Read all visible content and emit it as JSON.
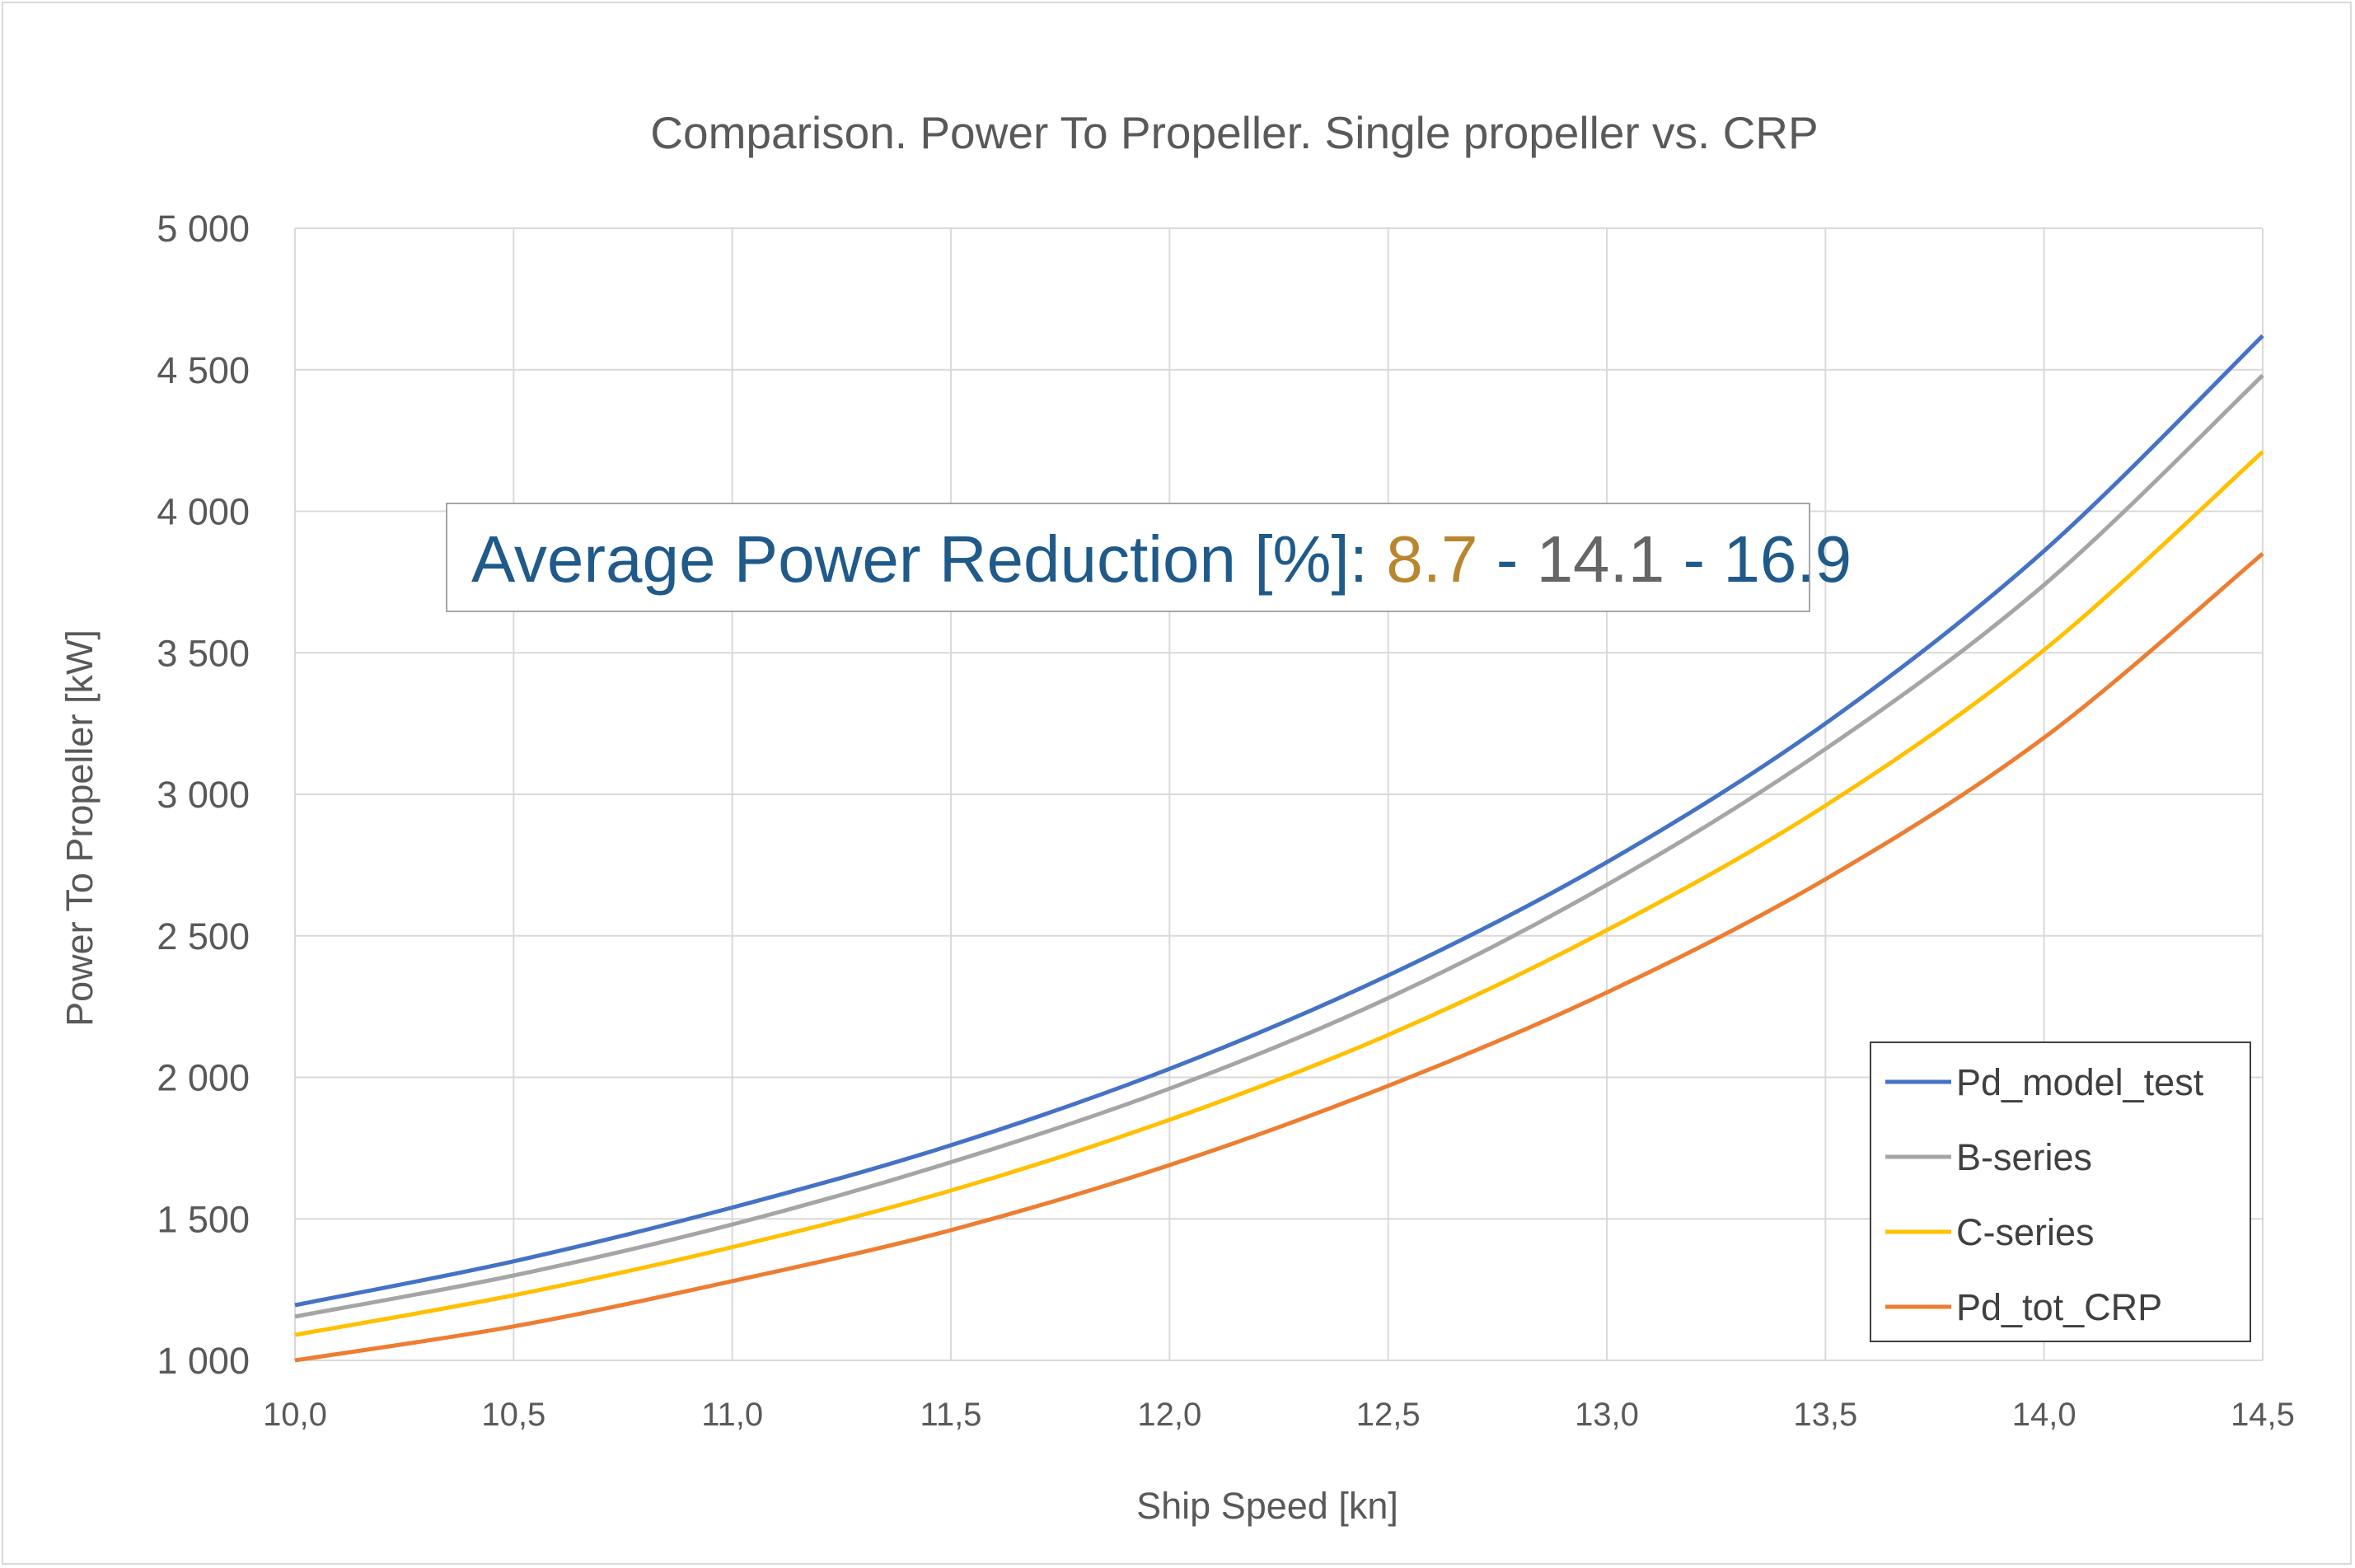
{
  "chart_data": {
    "type": "line",
    "title": "Comparison. Power To Propeller. Single propeller vs. CRP",
    "xlabel": "Ship Speed  [kn]",
    "ylabel": "Power To Propeller [kW]",
    "xlim": [
      10.0,
      14.5
    ],
    "ylim": [
      1000,
      5000
    ],
    "x_ticks": [
      "10,0",
      "10,5",
      "11,0",
      "11,5",
      "12,0",
      "12,5",
      "13,0",
      "13,5",
      "14,0",
      "14,5"
    ],
    "y_ticks": [
      "1 000",
      "1 500",
      "2 000",
      "2 500",
      "3 000",
      "3 500",
      "4 000",
      "4 500",
      "5 000"
    ],
    "grid": true,
    "legend_position": "bottom-right",
    "x": [
      10.0,
      10.5,
      11.0,
      11.5,
      12.0,
      12.5,
      13.0,
      13.5,
      14.0,
      14.5
    ],
    "series": [
      {
        "name": "Pd_model_test",
        "color": "#4472c4",
        "values": [
          1195,
          1350,
          1540,
          1760,
          2030,
          2360,
          2760,
          3250,
          3860,
          4620
        ]
      },
      {
        "name": "B-series",
        "color": "#a5a5a5",
        "values": [
          1155,
          1300,
          1480,
          1700,
          1960,
          2280,
          2680,
          3160,
          3740,
          4480
        ]
      },
      {
        "name": "C-series",
        "color": "#ffc000",
        "values": [
          1090,
          1230,
          1400,
          1600,
          1850,
          2150,
          2520,
          2960,
          3510,
          4210
        ]
      },
      {
        "name": "Pd_tot_CRP",
        "color": "#ed7d31",
        "values": [
          1000,
          1120,
          1280,
          1460,
          1690,
          1970,
          2300,
          2700,
          3200,
          3850
        ]
      }
    ],
    "annotation": {
      "label": "Average Power Reduction [%]:",
      "label_color": "#1f5a8a",
      "parts": [
        {
          "text": "8.7",
          "color": "#b8862e"
        },
        {
          "text": " - ",
          "color": "#1f5a8a"
        },
        {
          "text": "14.1",
          "color": "#666666"
        },
        {
          "text": " - ",
          "color": "#1f5a8a"
        },
        {
          "text": "16.9",
          "color": "#1f5a8a"
        }
      ]
    }
  }
}
